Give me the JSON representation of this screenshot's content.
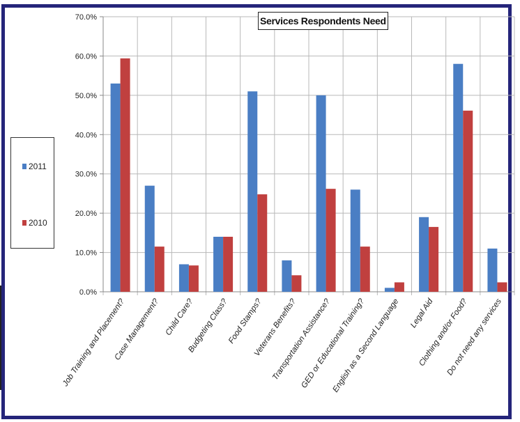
{
  "chart_data": {
    "type": "bar",
    "title": "Services Respondents Need",
    "xlabel": "",
    "ylabel": "",
    "ylim": [
      0,
      0.7
    ],
    "yticks": [
      "0.0%",
      "10.0%",
      "20.0%",
      "30.0%",
      "40.0%",
      "50.0%",
      "60.0%",
      "70.0%"
    ],
    "categories": [
      "Job Training and Placement?",
      "Case Management?",
      "Child Care?",
      "Budgeting Class?",
      "Food Stamps?",
      "Veterans Benefits?",
      "Transportation Assistance?",
      "GED or Educational Training?",
      "English as a Second Language",
      "Legal Aid",
      "Clothing and/or Food?",
      "Do not need any services"
    ],
    "series": [
      {
        "name": "2011",
        "color": "#4a7ec4",
        "values": [
          0.53,
          0.27,
          0.07,
          0.14,
          0.51,
          0.08,
          0.5,
          0.26,
          0.01,
          0.19,
          0.58,
          0.11
        ]
      },
      {
        "name": "2010",
        "color": "#c0403f",
        "values": [
          0.594,
          0.115,
          0.067,
          0.14,
          0.248,
          0.042,
          0.262,
          0.115,
          0.024,
          0.165,
          0.461,
          0.024
        ]
      }
    ],
    "grid": true,
    "legend_position": "left"
  }
}
